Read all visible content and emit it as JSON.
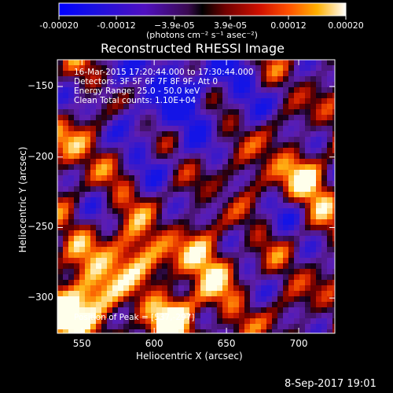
{
  "chart_data": {
    "type": "heatmap",
    "title": "Reconstructed RHESSI Image",
    "xlabel": "Heliocentric X (arcsec)",
    "ylabel": "Heliocentric Y (arcsec)",
    "xlim": [
      533,
      725
    ],
    "ylim": [
      -325,
      -131
    ],
    "x_ticks": [
      550,
      600,
      650,
      700
    ],
    "y_ticks": [
      -150,
      -200,
      -250,
      -300
    ],
    "colorbar": {
      "min": -0.0002,
      "max": 0.0002,
      "ticks": [
        "-0.00020",
        "-0.00012",
        "−3.9e-05",
        "3.9e-05",
        "0.00012",
        "0.00020"
      ],
      "units": "(photons cm⁻² s⁻¹ asec⁻²)"
    },
    "annotations": [
      "16-Mar-2015 17:20:44.000 to 17:30:44.000",
      "Detectors: 3F 5F 6F 7F 8F 9F, Att 0",
      "Energy Range: 25.0 - 50.0 keV",
      "Clean     Total counts: 1.10E+04"
    ],
    "peak_label": "Position of Peak = [537,-297]",
    "peak": [
      537,
      -297
    ]
  },
  "footer": {
    "date": "8-Sep-2017 19:01"
  }
}
